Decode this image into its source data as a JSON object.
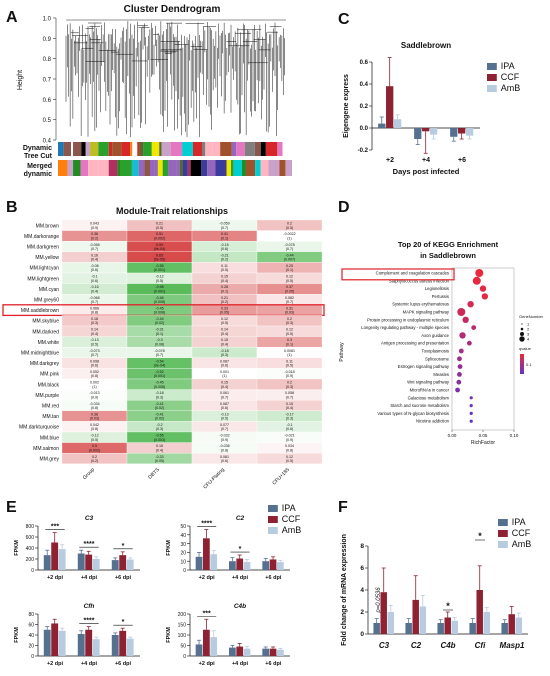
{
  "panel_labels": {
    "a": "A",
    "b": "B",
    "c": "C",
    "d": "D",
    "e": "E",
    "f": "F"
  },
  "colors": {
    "IPA": "#56708f",
    "CCF": "#8e2232",
    "AmB": "#b8cce0"
  },
  "panel_a": {
    "title": "Cluster Dendrogram",
    "ylabel": "Height",
    "yticks": [
      "1.0",
      "0.9",
      "0.8",
      "0.7",
      "0.6",
      "0.5",
      "0.4"
    ],
    "row_labels": [
      "Dynamic",
      "Tree Cut",
      "Merged",
      "dynamic"
    ]
  },
  "panel_b": {
    "title": "Module-Trait relationships",
    "rows": [
      {
        "name": "MM.brown",
        "cells": [
          "0.043\n(0.9)",
          "0.21\n(0.5)",
          "-0.059\n(0.7)",
          "0.2\n(0.5)"
        ]
      },
      {
        "name": "MM.darkorange",
        "cells": [
          "0.36\n(0.2)",
          "0.51\n(0.002)",
          "0.41\n(0.1)",
          "-0.0022\n(1)"
        ]
      },
      {
        "name": "MM.darkgreen",
        "cells": [
          "-0.058\n(0.7)",
          "0.59\n(9e-04)",
          "-0.15\n(0.6)",
          "-0.078\n(0.7)"
        ]
      },
      {
        "name": "MM.yellow",
        "cells": [
          "0.16\n(0.4)",
          "0.65\n(5e-05)",
          "-0.21\n(0.2)",
          "-0.44\n(0.007)"
        ]
      },
      {
        "name": "MM.lightcyan",
        "cells": [
          "-0.08\n(0.6)",
          "-0.55\n(0.001)",
          "0.11\n(0.5)",
          "0.25\n(0.1)"
        ]
      },
      {
        "name": "MM.lightgreen",
        "cells": [
          "-0.1\n(0.6)",
          "-0.12\n(0.5)",
          "0.15\n(0.4)",
          "0.12\n(0.5)"
        ]
      },
      {
        "name": "MM.cyan",
        "cells": [
          "-0.16\n(0.4)",
          "-0.58\n(0.001)",
          "0.28\n(0.1)",
          "0.37\n(0.05)"
        ]
      },
      {
        "name": "MM.grey60",
        "cells": [
          "-0.068\n(0.7)",
          "-0.46\n(0.008)",
          "0.21\n(0.2)",
          "0.082\n(0.7)"
        ]
      },
      {
        "name": "MM.saddlebrown",
        "cells": [
          "0.066\n(0.8)",
          "-0.45\n(0.008)",
          "0.33\n(0.05)",
          "0.31\n(0.03)"
        ]
      },
      {
        "name": "MM.skyblue",
        "cells": [
          "0.18\n(0.3)",
          "-0.44\n(0.02)",
          "0.12\n(0.5)",
          "0.2\n(0.3)"
        ]
      },
      {
        "name": "MM.darkred",
        "cells": [
          "0.14\n(0.4)",
          "-0.31\n(0.1)",
          "0.14\n(0.4)",
          "0.12\n(0.5)"
        ]
      },
      {
        "name": "MM.white",
        "cells": [
          "-0.13\n(0.5)",
          "-0.3\n(0.08)",
          "0.15\n(0.4)",
          "0.3\n(0.1)"
        ]
      },
      {
        "name": "MM.midnightblue",
        "cells": [
          "-0.073\n(0.7)",
          "-0.078\n(0.7)",
          "-0.18\n(0.3)",
          "0.0081\n(1)"
        ]
      },
      {
        "name": "MM.darkgrey",
        "cells": [
          "0.098\n(0.6)",
          "-0.54\n(9e-04)",
          "0.087\n(0.6)",
          "0.11\n(0.5)"
        ]
      },
      {
        "name": "MM.pink",
        "cells": [
          "0.052\n(0.8)",
          "-0.52\n(0.001)",
          "0.001\n(1)",
          "-0.018\n(0.9)"
        ]
      },
      {
        "name": "MM.black",
        "cells": [
          "0.002\n(1)",
          "-0.45\n(0.006)",
          "0.15\n(0.4)",
          "0.2\n(0.3)"
        ]
      },
      {
        "name": "MM.purple",
        "cells": [
          "-0.013\n(0.9)",
          "-0.18\n(0.3)",
          "0.061\n(0.7)",
          "0.058\n(0.7)"
        ]
      },
      {
        "name": "MM.red",
        "cells": [
          "-0.034\n(0.8)",
          "-0.41\n(0.02)",
          "0.087\n(0.6)",
          "0.15\n(0.4)"
        ]
      },
      {
        "name": "MM.tan",
        "cells": [
          "0.36\n(0.03)",
          "-0.41\n(0.02)",
          "-0.13\n(0.5)",
          "-0.17\n(0.3)"
        ]
      },
      {
        "name": "MM.darkturquoise",
        "cells": [
          "0.042\n(0.8)",
          "-0.2\n(0.3)",
          "0.077\n(0.7)",
          "-0.1\n(0.6)"
        ]
      },
      {
        "name": "MM.blue",
        "cells": [
          "-0.12\n(0.5)",
          "-0.55\n(0.003)",
          "-0.032\n(0.9)",
          "-0.021\n(0.9)"
        ]
      },
      {
        "name": "MM.salmon",
        "cells": [
          "0.5\n(0.002)",
          "0.16\n(0.4)",
          "-0.036\n(0.8)",
          "0.034\n(0.8)"
        ]
      },
      {
        "name": "MM.grey",
        "cells": [
          "0.2\n(0.2)",
          "-0.33\n(0.05)",
          "0.081\n(0.6)",
          "0.12\n(0.5)"
        ]
      }
    ],
    "columns": [
      "Group",
      "DBTS",
      "CFU-Plating",
      "CFU+185"
    ],
    "highlight_row": "MM.saddlebrown"
  },
  "chart_data": [
    {
      "id": "C",
      "type": "bar",
      "title": "Saddlebrown",
      "xlabel": "Days post infected",
      "ylabel": "Eigengene express",
      "categories": [
        "+2",
        "+4",
        "+6"
      ],
      "yticks": [
        "0.6",
        "0.4",
        "0.2",
        "0.0",
        "-0.2"
      ],
      "ylim": [
        -0.2,
        0.6
      ],
      "series": [
        {
          "name": "IPA",
          "values": [
            0.04,
            -0.1,
            -0.08
          ],
          "err": [
            0.06,
            0.05,
            0.04
          ]
        },
        {
          "name": "CCF",
          "values": [
            0.38,
            -0.03,
            -0.05
          ],
          "err": [
            0.26,
            0.2,
            0.05
          ]
        },
        {
          "name": "AmB",
          "values": [
            0.08,
            -0.06,
            -0.07
          ],
          "err": [
            0.04,
            0.04,
            0.03
          ]
        }
      ]
    },
    {
      "id": "D",
      "type": "scatter",
      "title": "Top 20 of KEGG Enrichment",
      "subtitle": "in Saddlebrown",
      "xlabel": "RichFactor",
      "ylabel": "Pathway",
      "xticks": [
        "0.00",
        "0.05",
        "0.10"
      ],
      "xlim": [
        0,
        0.1
      ],
      "legend_size_title": "GeneNumber",
      "legend_size_labels": [
        "1",
        "2",
        "3",
        "4"
      ],
      "legend_color_title": "qvalue",
      "legend_color_labels": [
        "0.1"
      ],
      "highlight": "Complement and coagulation cascades",
      "points": [
        {
          "pathway": "Complement and coagulation cascades",
          "x": 0.044,
          "size": 4,
          "q": 0.01
        },
        {
          "pathway": "Staphylococcus aureus infection",
          "x": 0.04,
          "size": 4,
          "q": 0.015
        },
        {
          "pathway": "Legionellosis",
          "x": 0.05,
          "size": 3,
          "q": 0.02
        },
        {
          "pathway": "Pertussis",
          "x": 0.053,
          "size": 3,
          "q": 0.02
        },
        {
          "pathway": "Systemic lupus erythematosus",
          "x": 0.03,
          "size": 3,
          "q": 0.04
        },
        {
          "pathway": "MAPK signaling pathway",
          "x": 0.015,
          "size": 4,
          "q": 0.05
        },
        {
          "pathway": "Protein processing in endoplasmic reticulum",
          "x": 0.022,
          "size": 3,
          "q": 0.06
        },
        {
          "pathway": "Longevity regulating pathway - multiple species",
          "x": 0.035,
          "size": 2,
          "q": 0.07
        },
        {
          "pathway": "Axon guidance",
          "x": 0.017,
          "size": 3,
          "q": 0.08
        },
        {
          "pathway": "Antigen processing and presentation",
          "x": 0.028,
          "size": 2,
          "q": 0.09
        },
        {
          "pathway": "Toxoplasmosis",
          "x": 0.015,
          "size": 2,
          "q": 0.1
        },
        {
          "pathway": "Spliceosome",
          "x": 0.012,
          "size": 2,
          "q": 0.11
        },
        {
          "pathway": "Estrogen signaling pathway",
          "x": 0.013,
          "size": 2,
          "q": 0.12
        },
        {
          "pathway": "Measles",
          "x": 0.012,
          "size": 2,
          "q": 0.13
        },
        {
          "pathway": "Wnt signaling pathway",
          "x": 0.011,
          "size": 2,
          "q": 0.14
        },
        {
          "pathway": "MicroRNAs in cancer",
          "x": 0.009,
          "size": 2,
          "q": 0.15
        },
        {
          "pathway": "Galactose metabolism",
          "x": 0.031,
          "size": 1,
          "q": 0.16
        },
        {
          "pathway": "Starch and sucrose metabolism",
          "x": 0.031,
          "size": 1,
          "q": 0.17
        },
        {
          "pathway": "Various types of N-glycan biosynthesis",
          "x": 0.031,
          "size": 1,
          "q": 0.18
        },
        {
          "pathway": "Nicotine addiction",
          "x": 0.031,
          "size": 1,
          "q": 0.19
        }
      ]
    },
    {
      "id": "E-C3",
      "type": "bar",
      "title": "C3",
      "ylabel": "FPKM",
      "categories": [
        "+2 dpi",
        "+4 dpi",
        "+6 dpi"
      ],
      "yticks": [
        "800",
        "600",
        "400",
        "200",
        "0"
      ],
      "ylim": [
        0,
        800
      ],
      "sig": [
        "***",
        "****",
        "*"
      ],
      "series": [
        {
          "name": "IPA",
          "values": [
            270,
            300,
            180
          ],
          "err": [
            90,
            60,
            40
          ]
        },
        {
          "name": "CCF",
          "values": [
            500,
            280,
            270
          ],
          "err": [
            180,
            60,
            60
          ]
        },
        {
          "name": "AmB",
          "values": [
            380,
            200,
            190
          ],
          "err": [
            80,
            40,
            30
          ]
        }
      ]
    },
    {
      "id": "E-C2",
      "type": "bar",
      "title": "C2",
      "ylabel": "FPKM",
      "categories": [
        "+2 dpi",
        "+4 dpi",
        "+6 dpi"
      ],
      "yticks": [
        "50",
        "40",
        "30",
        "20",
        "10",
        "0"
      ],
      "ylim": [
        0,
        50
      ],
      "sig": [
        "****",
        "*",
        ""
      ],
      "series": [
        {
          "name": "IPA",
          "values": [
            15,
            10,
            10
          ],
          "err": [
            5,
            4,
            3
          ]
        },
        {
          "name": "CCF",
          "values": [
            36,
            13,
            12
          ],
          "err": [
            10,
            4,
            3
          ]
        },
        {
          "name": "AmB",
          "values": [
            18,
            9,
            9
          ],
          "err": [
            4,
            3,
            2
          ]
        }
      ]
    },
    {
      "id": "E-Cfh",
      "type": "bar",
      "title": "Cfh",
      "ylabel": "FPKM",
      "categories": [
        "+2 dpi",
        "+4 dpi",
        "+6 dpi"
      ],
      "yticks": [
        "80",
        "60",
        "40",
        "20",
        "0"
      ],
      "ylim": [
        0,
        80
      ],
      "sig": [
        "",
        "****",
        "*"
      ],
      "series": [
        {
          "name": "IPA",
          "values": [
            50,
            42,
            40
          ],
          "err": [
            6,
            6,
            4
          ]
        },
        {
          "name": "CCF",
          "values": [
            62,
            50,
            48
          ],
          "err": [
            8,
            6,
            5
          ]
        },
        {
          "name": "AmB",
          "values": [
            48,
            32,
            33
          ],
          "err": [
            5,
            4,
            3
          ]
        }
      ]
    },
    {
      "id": "E-C4b",
      "type": "bar",
      "title": "C4b",
      "ylabel": "FPKM",
      "categories": [
        "+2 dpi",
        "+4 dpi",
        "+6 dpi"
      ],
      "yticks": [
        "200",
        "150",
        "100",
        "50",
        "0"
      ],
      "ylim": [
        0,
        200
      ],
      "sig": [
        "***",
        "",
        ""
      ],
      "series": [
        {
          "name": "IPA",
          "values": [
            55,
            40,
            35
          ],
          "err": [
            20,
            10,
            8
          ]
        },
        {
          "name": "CCF",
          "values": [
            125,
            45,
            35
          ],
          "err": [
            50,
            15,
            8
          ]
        },
        {
          "name": "AmB",
          "values": [
            90,
            35,
            30
          ],
          "err": [
            30,
            10,
            6
          ]
        }
      ]
    },
    {
      "id": "F",
      "type": "bar",
      "ylabel": "Fold change of mRNA expression",
      "categories": [
        "C3",
        "C2",
        "C4b",
        "Cfi",
        "Masp1"
      ],
      "yticks": [
        "8",
        "6",
        "4",
        "2",
        "0"
      ],
      "ylim": [
        0,
        8
      ],
      "annotation": "p=0.0536",
      "series": [
        {
          "name": "IPA",
          "values": [
            1,
            1,
            1,
            1,
            1
          ],
          "err": [
            0.4,
            0.4,
            0.3,
            0.4,
            0.3
          ]
        },
        {
          "name": "CCF",
          "values": [
            3.8,
            3.1,
            1.5,
            4,
            1.8
          ],
          "err": [
            2.2,
            2.2,
            0.5,
            2.2,
            0.7
          ]
        },
        {
          "name": "AmB",
          "values": [
            2,
            2.5,
            1.2,
            2,
            1.5
          ],
          "err": [
            0.6,
            1,
            0.3,
            0.4,
            0.4
          ]
        }
      ],
      "sig_pairs": [
        {
          "cat": 2,
          "text": "*"
        },
        {
          "cat": 3,
          "text": "*"
        }
      ]
    }
  ],
  "legend": {
    "labels": [
      "IPA",
      "CCF",
      "AmB"
    ]
  }
}
